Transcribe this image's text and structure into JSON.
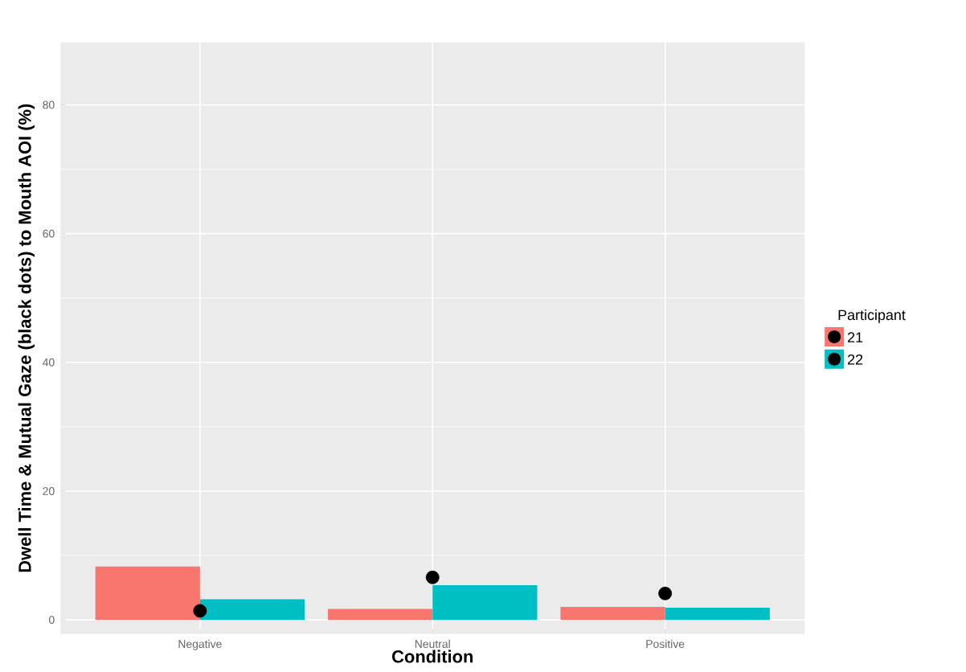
{
  "chart_data": {
    "type": "bar",
    "xlabel": "Condition",
    "ylabel": "Dwell Time & Mutual Gaze (black dots) to Mouth AOI (%)",
    "legend_title": "Participant",
    "categories": [
      "Negative",
      "Neutral",
      "Positive"
    ],
    "series": [
      {
        "name": "21",
        "color": "#f8766d",
        "values": [
          8.3,
          1.7,
          2.0
        ]
      },
      {
        "name": "22",
        "color": "#00bfc4",
        "values": [
          3.2,
          5.4,
          1.9
        ]
      },
      {
        "type": "scatter",
        "color": "#000000",
        "x": [
          "Negative",
          "Neutral",
          "Positive"
        ],
        "values": [
          1.4,
          6.6,
          4.1
        ]
      }
    ],
    "ylim": [
      -2.2,
      89.7
    ],
    "yticks": [
      0,
      20,
      40,
      60,
      80
    ],
    "grid": true,
    "legend": "right",
    "marker": "circle"
  }
}
